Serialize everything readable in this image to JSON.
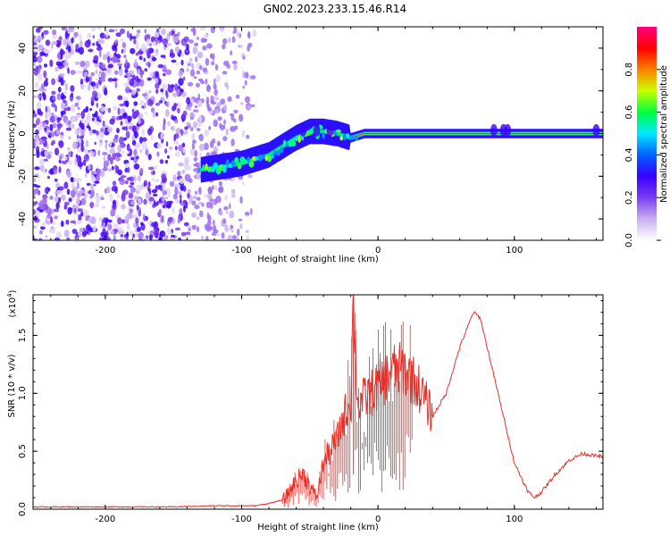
{
  "title": "GN02.2023.233.15.46.R14",
  "colors": {
    "snr_line": "#e8302a",
    "axes": "#000000",
    "background": "#ffffff",
    "colormap": [
      "#ffffff",
      "#c9b0f0",
      "#7a3cf0",
      "#3a00ff",
      "#0060ff",
      "#00e8ff",
      "#00ff40",
      "#c8ff00",
      "#ff8000",
      "#ff0000",
      "#ff0080"
    ]
  },
  "chart_data": [
    {
      "type": "heatmap",
      "name": "spectrogram",
      "title": "GN02.2023.233.15.46.R14",
      "xlabel": "Height of straight line (km)",
      "ylabel": "Frequency (Hz)",
      "xlim": [
        -253,
        165
      ],
      "ylim": [
        -50,
        50
      ],
      "xticks": [
        -200,
        -100,
        0,
        100
      ],
      "yticks": [
        -40,
        -20,
        0,
        20,
        40
      ],
      "grid": false,
      "noise_region_x": [
        -253,
        -90
      ],
      "signal_track": {
        "x": [
          -130,
          -120,
          -110,
          -100,
          -90,
          -80,
          -70,
          -60,
          -50,
          -40,
          -30,
          -20,
          -10,
          0,
          20,
          40,
          60,
          80,
          100,
          120,
          140,
          165
        ],
        "frequency_hz": [
          -17,
          -16,
          -15,
          -14,
          -12,
          -10,
          -6,
          -2,
          1,
          1,
          0,
          -2,
          0,
          0,
          0,
          0,
          0,
          0,
          0,
          0,
          0,
          0
        ]
      },
      "colorbar": {
        "label": "Normalized spectral amplitude",
        "range": [
          0,
          1
        ],
        "ticks": [
          "0.0",
          "0.2",
          "0.4",
          "0.6",
          "0.8"
        ]
      }
    },
    {
      "type": "line",
      "name": "snr",
      "xlabel": "Height of straight line (km)",
      "ylabel": "SNR (10 * v/v)",
      "y_scale_label": "(x10",
      "y_scale_exp": "4",
      "xlim": [
        -253,
        165
      ],
      "ylim": [
        0,
        1.85
      ],
      "xticks": [
        -200,
        -100,
        0,
        100
      ],
      "yticks": [
        "0.0",
        "0.5",
        "1.0",
        "1.5"
      ],
      "grid": false,
      "series": [
        {
          "x": [
            -253,
            -200,
            -150,
            -120,
            -100,
            -90,
            -80,
            -70,
            -65,
            -60,
            -55,
            -50,
            -45,
            -40,
            -35,
            -30,
            -25,
            -20,
            -18,
            -15,
            -10,
            -5,
            0,
            10,
            20,
            30,
            40,
            50,
            60,
            70,
            75,
            80,
            90,
            100,
            110,
            115,
            120,
            130,
            140,
            150,
            160,
            165
          ],
          "y": [
            0.02,
            0.02,
            0.02,
            0.03,
            0.03,
            0.03,
            0.05,
            0.08,
            0.15,
            0.25,
            0.3,
            0.2,
            0.1,
            0.4,
            0.5,
            0.6,
            0.8,
            0.95,
            1.85,
            0.9,
            0.95,
            1.0,
            1.05,
            1.2,
            1.2,
            1.05,
            0.8,
            1.0,
            1.4,
            1.7,
            1.65,
            1.4,
            0.9,
            0.4,
            0.15,
            0.1,
            0.15,
            0.3,
            0.42,
            0.48,
            0.46,
            0.45
          ]
        }
      ]
    }
  ]
}
